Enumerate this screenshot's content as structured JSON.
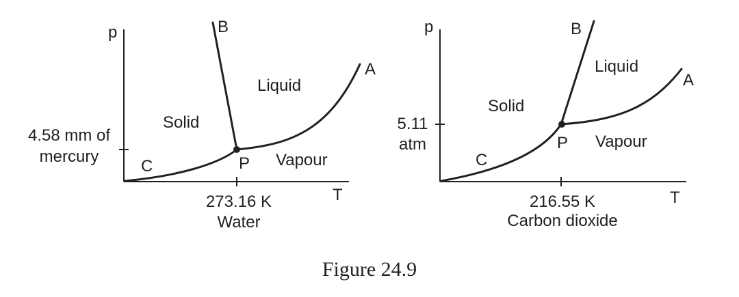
{
  "water": {
    "y_axis_label": "p",
    "x_axis_label": "T",
    "pressure_label_line1": "4.58 mm of",
    "pressure_label_line2": "mercury",
    "temperature_label": "273.16 K",
    "substance": "Water",
    "point_b": "B",
    "point_a": "A",
    "point_c": "C",
    "point_p": "P",
    "region_solid": "Solid",
    "region_liquid": "Liquid",
    "region_vapour": "Vapour"
  },
  "carbon_dioxide": {
    "y_axis_label": "p",
    "x_axis_label": "T",
    "pressure_label_line1": "5.11",
    "pressure_label_line2": "atm",
    "temperature_label": "216.55 K",
    "substance": "Carbon dioxide",
    "point_b": "B",
    "point_a": "A",
    "point_c": "C",
    "point_p": "P",
    "region_solid": "Solid",
    "region_liquid": "Liquid",
    "region_vapour": "Vapour"
  },
  "caption": "Figure 24.9"
}
